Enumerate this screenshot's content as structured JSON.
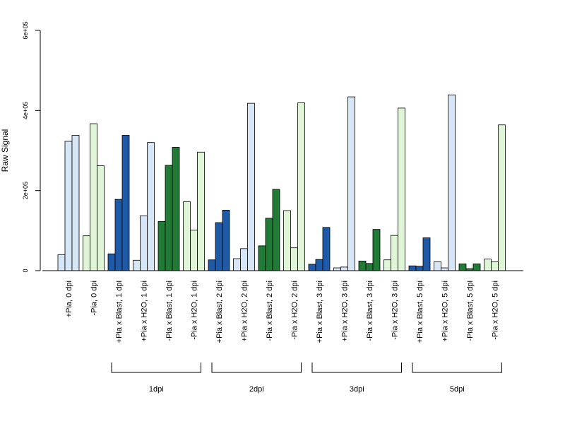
{
  "chart_data": {
    "type": "bar",
    "title": "",
    "xlabel": "",
    "ylabel": "Raw Signal",
    "ylim": [
      0,
      600000
    ],
    "yticks": [
      0,
      200000,
      400000,
      600000
    ],
    "ytick_labels": [
      "0",
      "2e+05",
      "4e+05",
      "6e+05"
    ],
    "grid": false,
    "colors": {
      "light_blue": "#d6e6f7",
      "dark_blue": "#1f5aa8",
      "light_green": "#e0f5d8",
      "dark_green": "#217a35"
    },
    "categories": [
      {
        "label": "+Pia, 0 dpi",
        "color": "light_blue",
        "values": [
          40000,
          323000,
          338000
        ]
      },
      {
        "label": "-Pia, 0 dpi",
        "color": "light_green",
        "values": [
          87000,
          367000,
          262000
        ]
      },
      {
        "label": "+Pia x Blast, 1 dpi",
        "color": "dark_blue",
        "values": [
          42000,
          178000,
          338000
        ]
      },
      {
        "label": "+Pia x H2O, 1 dpi",
        "color": "light_blue",
        "values": [
          26000,
          137000,
          320000
        ]
      },
      {
        "label": "-Pia x Blast, 1 dpi",
        "color": "dark_green",
        "values": [
          123000,
          263000,
          308000
        ]
      },
      {
        "label": "-Pia x H2O, 1 dpi",
        "color": "light_green",
        "values": [
          172000,
          101000,
          296000
        ]
      },
      {
        "label": "+Pia x Blast, 2 dpi",
        "color": "dark_blue",
        "values": [
          27000,
          120000,
          151000
        ]
      },
      {
        "label": "+Pia x H2O, 2 dpi",
        "color": "light_blue",
        "values": [
          30000,
          55000,
          418000
        ]
      },
      {
        "label": "-Pia x Blast, 2 dpi",
        "color": "dark_green",
        "values": [
          62000,
          131000,
          203000
        ]
      },
      {
        "label": "-Pia x H2O, 2 dpi",
        "color": "light_green",
        "values": [
          150000,
          57000,
          419000
        ]
      },
      {
        "label": "+Pia x Blast, 3 dpi",
        "color": "dark_blue",
        "values": [
          16000,
          28000,
          108000
        ]
      },
      {
        "label": "+Pia x H2O, 3 dpi",
        "color": "light_blue",
        "values": [
          7000,
          9000,
          434000
        ]
      },
      {
        "label": "-Pia x Blast, 3 dpi",
        "color": "dark_green",
        "values": [
          24000,
          18000,
          103000
        ]
      },
      {
        "label": "-Pia x H2O, 3 dpi",
        "color": "light_green",
        "values": [
          27000,
          88000,
          406000
        ]
      },
      {
        "label": "+Pia x Blast, 5 dpi",
        "color": "dark_blue",
        "values": [
          12000,
          11000,
          82000
        ]
      },
      {
        "label": "+Pia x H2O, 5 dpi",
        "color": "light_blue",
        "values": [
          22000,
          7000,
          439000
        ]
      },
      {
        "label": "-Pia x Blast, 5 dpi",
        "color": "dark_green",
        "values": [
          17000,
          5000,
          17000
        ]
      },
      {
        "label": "-Pia x H2O, 5 dpi",
        "color": "light_green",
        "values": [
          29000,
          22000,
          364000
        ]
      }
    ],
    "groups": [
      {
        "label": "1dpi",
        "from": 2,
        "to": 5
      },
      {
        "label": "2dpi",
        "from": 6,
        "to": 9
      },
      {
        "label": "3dpi",
        "from": 10,
        "to": 13
      },
      {
        "label": "5dpi",
        "from": 14,
        "to": 17
      }
    ]
  }
}
